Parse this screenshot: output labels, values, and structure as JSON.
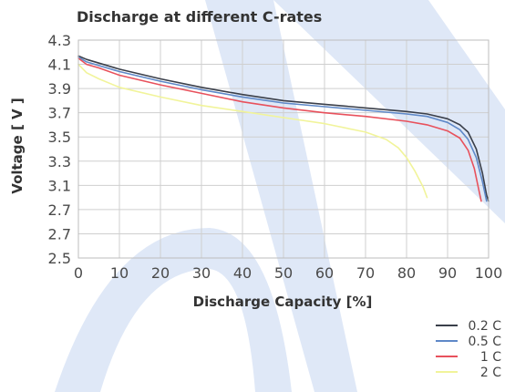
{
  "chart_data": {
    "type": "line",
    "title": "Discharge at different C-rates",
    "xlabel": "Discharge Capacity [%]",
    "ylabel": "Voltage [ V ]",
    "x_ticks": [
      "0",
      "10",
      "20",
      "30",
      "40",
      "50",
      "60",
      "70",
      "80",
      "90",
      "100"
    ],
    "y_ticks": [
      "4.3",
      "4.1",
      "3.9",
      "3.7",
      "3.5",
      "3.3",
      "3.1",
      "2.7",
      "2.7",
      "2.5"
    ],
    "xlim": [
      0,
      100
    ],
    "ylim": [
      2.5,
      4.3
    ],
    "grid": true,
    "legend_position": "bottom-right",
    "series": [
      {
        "name": "0.2 C",
        "color": "#3a3f4a",
        "x": [
          0,
          2,
          5,
          10,
          20,
          30,
          40,
          50,
          60,
          70,
          80,
          85,
          90,
          93,
          95,
          97,
          98.5,
          99.5,
          100
        ],
        "y": [
          4.17,
          4.14,
          4.11,
          4.06,
          3.98,
          3.91,
          3.85,
          3.8,
          3.77,
          3.74,
          3.71,
          3.69,
          3.65,
          3.6,
          3.54,
          3.4,
          3.2,
          3.02,
          2.97
        ]
      },
      {
        "name": "0.5 C",
        "color": "#5e88c8",
        "x": [
          0,
          2,
          5,
          10,
          20,
          30,
          40,
          50,
          60,
          70,
          80,
          85,
          90,
          93,
          95,
          97,
          98.5,
          99.5
        ],
        "y": [
          4.16,
          4.12,
          4.09,
          4.04,
          3.96,
          3.89,
          3.83,
          3.78,
          3.75,
          3.72,
          3.69,
          3.67,
          3.62,
          3.56,
          3.48,
          3.33,
          3.13,
          2.97
        ]
      },
      {
        "name": "1 C",
        "color": "#e8515c",
        "x": [
          0,
          2,
          5,
          10,
          20,
          30,
          40,
          50,
          60,
          70,
          80,
          85,
          90,
          93,
          95,
          96.5,
          97.5,
          98.2
        ],
        "y": [
          4.15,
          4.1,
          4.07,
          4.01,
          3.93,
          3.86,
          3.79,
          3.74,
          3.7,
          3.67,
          3.63,
          3.6,
          3.55,
          3.49,
          3.39,
          3.24,
          3.08,
          2.97
        ]
      },
      {
        "name": "2 C",
        "color": "#f1f49a",
        "x": [
          0,
          2,
          5,
          10,
          20,
          30,
          40,
          50,
          60,
          70,
          75,
          78,
          80,
          82,
          84,
          85
        ],
        "y": [
          4.1,
          4.03,
          3.98,
          3.91,
          3.83,
          3.76,
          3.71,
          3.66,
          3.61,
          3.54,
          3.48,
          3.41,
          3.33,
          3.22,
          3.09,
          3.0
        ]
      }
    ]
  }
}
